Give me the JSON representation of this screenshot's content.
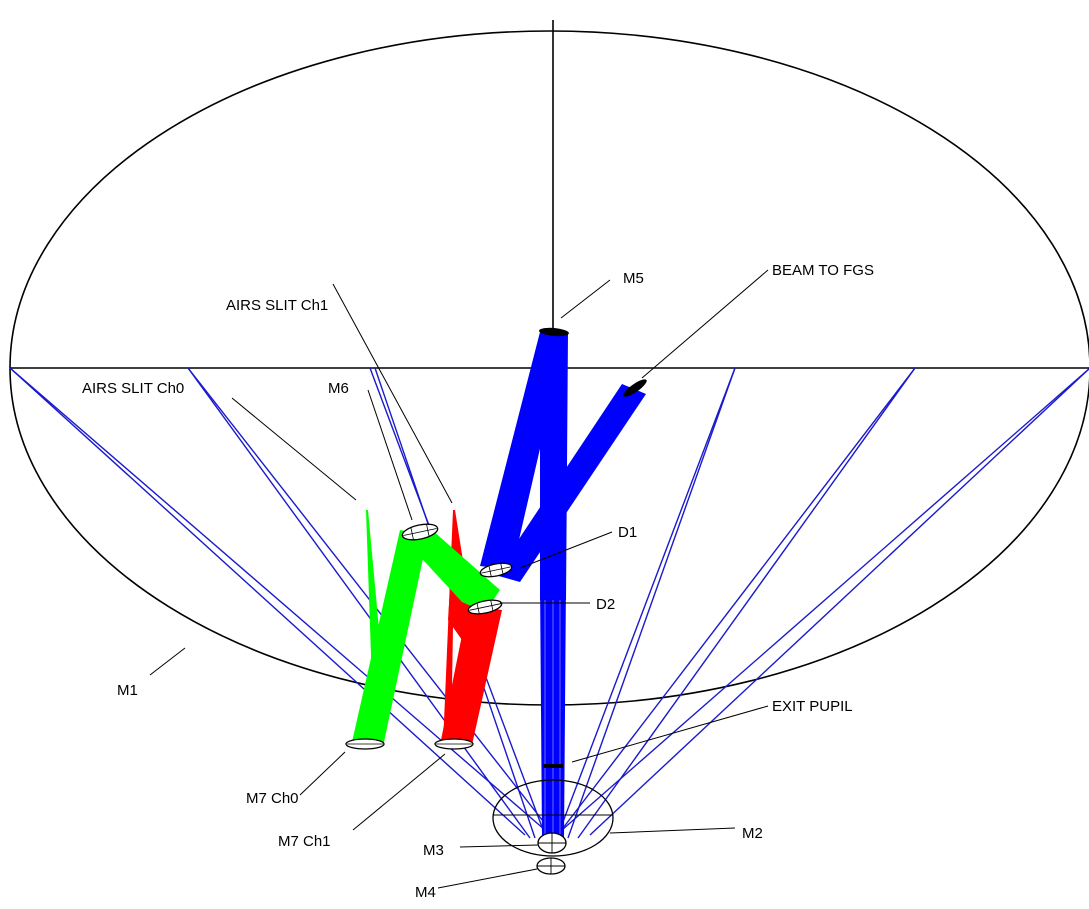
{
  "colors": {
    "background": "#ffffff",
    "outline": "#000000",
    "beam_blue": "#0000ff",
    "beam_green": "#00ff00",
    "beam_red": "#ff0000",
    "ray_blue": "#1a1acc"
  },
  "labels": {
    "m1": "M1",
    "m2": "M2",
    "m3": "M3",
    "m4": "M4",
    "m5": "M5",
    "m6": "M6",
    "d1": "D1",
    "d2": "D2",
    "m7_ch0": "M7 Ch0",
    "m7_ch1": "M7 Ch1",
    "airs_slit_ch0": "AIRS SLIT Ch0",
    "airs_slit_ch1": "AIRS SLIT Ch1",
    "beam_to_fgs": "BEAM TO FGS",
    "exit_pupil": "EXIT PUPIL"
  }
}
